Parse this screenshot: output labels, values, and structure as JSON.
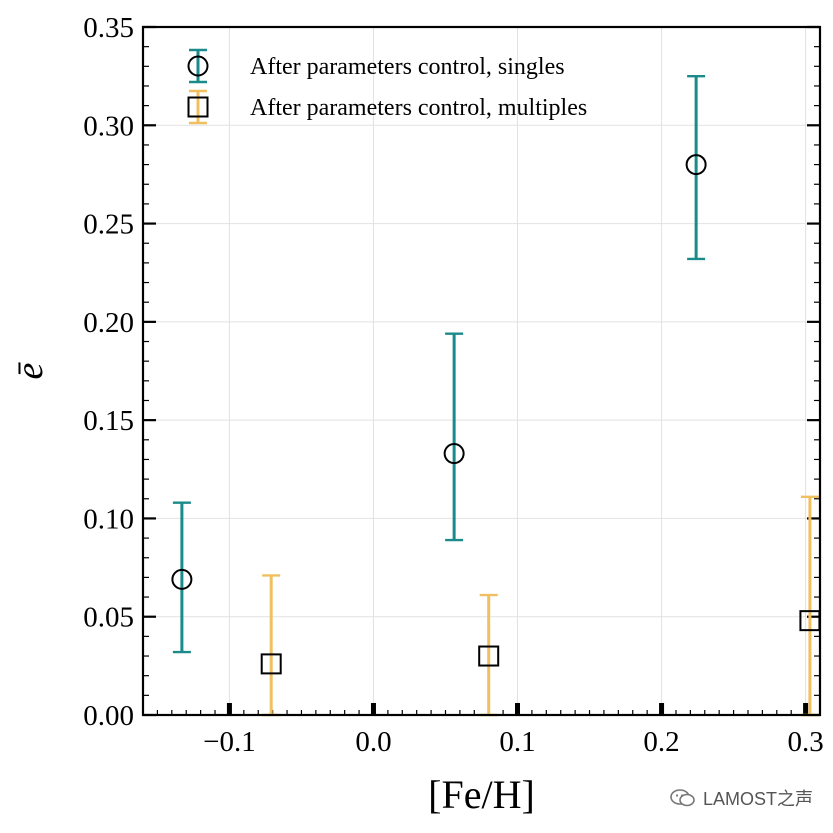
{
  "chart_data": {
    "type": "scatter",
    "xlabel": "[Fe/H]",
    "ylabel": "ē",
    "xlim": [
      -0.16,
      0.31
    ],
    "ylim": [
      0.0,
      0.35
    ],
    "xticks": [
      -0.1,
      0.0,
      0.1,
      0.2,
      0.3
    ],
    "xtick_labels": [
      "−0.1",
      "0.0",
      "0.1",
      "0.2",
      "0.3"
    ],
    "yticks": [
      0.0,
      0.05,
      0.1,
      0.15,
      0.2,
      0.25,
      0.3,
      0.35
    ],
    "ytick_labels": [
      "0.00",
      "0.05",
      "0.10",
      "0.15",
      "0.20",
      "0.25",
      "0.30",
      "0.35"
    ],
    "grid": true,
    "legend_position": "top-left",
    "series": [
      {
        "name": "After parameters control, singles",
        "marker": "circle",
        "color": "#1a8a8a",
        "x": [
          -0.133,
          0.056,
          0.224
        ],
        "y": [
          0.069,
          0.133,
          0.28
        ],
        "yerr_low": [
          0.032,
          0.089,
          0.232
        ],
        "yerr_high": [
          0.108,
          0.194,
          0.325
        ]
      },
      {
        "name": "After parameters control, multiples",
        "marker": "square",
        "color": "#f0c060",
        "x": [
          -0.071,
          0.08,
          0.303
        ],
        "y": [
          0.026,
          0.03,
          0.048
        ],
        "yerr_low": [
          0.0,
          0.0,
          0.0
        ],
        "yerr_high": [
          0.071,
          0.061,
          0.111
        ]
      }
    ]
  },
  "watermark": {
    "text": "LAMOST之声"
  }
}
